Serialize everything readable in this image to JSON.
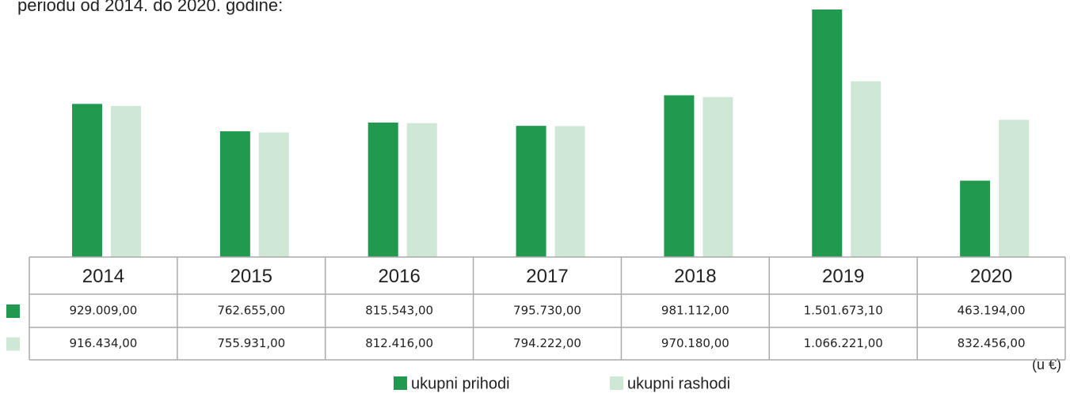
{
  "chart_data": {
    "type": "bar",
    "title": "periodu od 2014. do 2020. godine:",
    "unit_note": "(u €)",
    "categories": [
      "2014",
      "2015",
      "2016",
      "2017",
      "2018",
      "2019",
      "2020"
    ],
    "series": [
      {
        "name": "ukupni prihodi",
        "color": "#21994f",
        "values": [
          929009,
          762655,
          815543,
          795730,
          981112,
          1501673.1,
          463194
        ],
        "value_labels": [
          "929.009,00",
          "762.655,00",
          "815.543,00",
          "795.730,00",
          "981.112,00",
          "1.501.673,10",
          "463.194,00"
        ]
      },
      {
        "name": "ukupni rashodi",
        "color": "#cfe8d5",
        "values": [
          916434,
          755931,
          812416,
          794222,
          970180,
          1066221,
          832456
        ],
        "value_labels": [
          "916.434,00",
          "755.931,00",
          "812.416,00",
          "794.222,00",
          "970.180,00",
          "1.066.221,00",
          "832.456,00"
        ]
      }
    ]
  }
}
